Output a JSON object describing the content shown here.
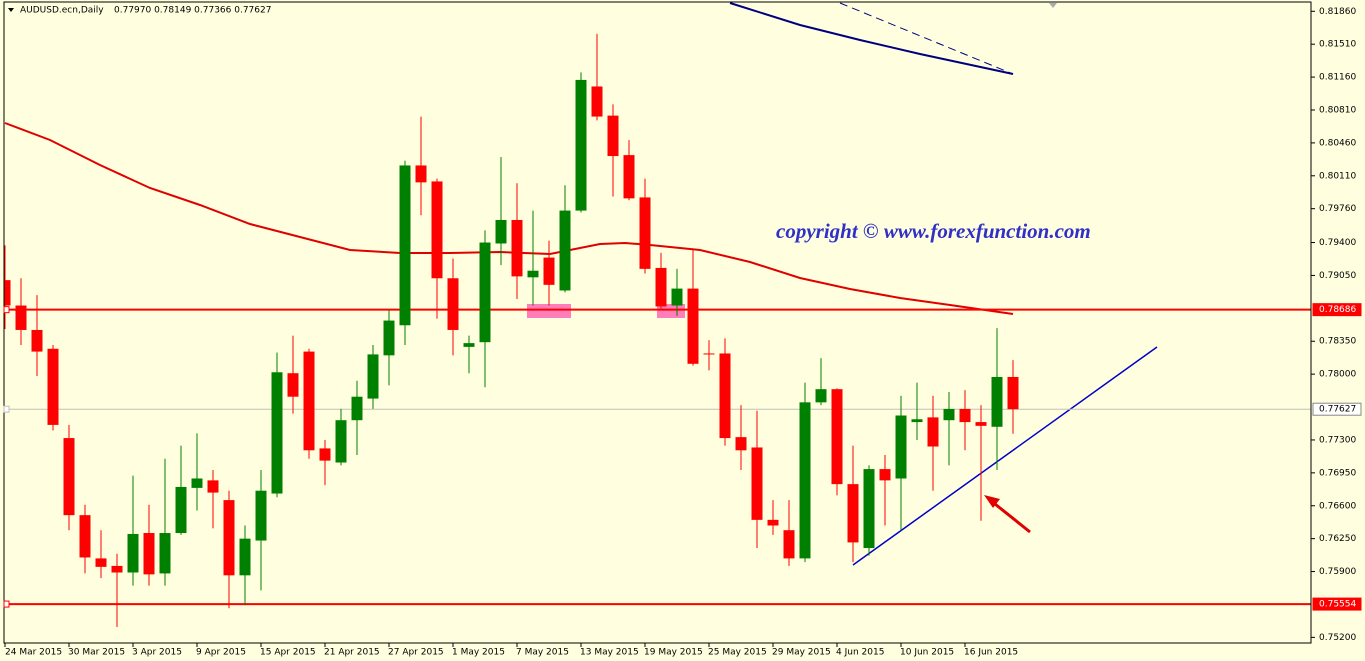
{
  "chart_data": {
    "type": "candlestick",
    "title": "AUDUSD.ecn,Daily",
    "subtitle": "0.77970 0.78149 0.77366 0.77627",
    "annotation": "copyright  ©  www.forexfunction.com",
    "up_color": "#008000",
    "down_color": "#ff0000",
    "categories": [
      "24 Mar 2015",
      null,
      null,
      null,
      "30 Mar 2015",
      null,
      null,
      null,
      "3 Apr 2015",
      null,
      null,
      null,
      "9 Apr 2015",
      null,
      null,
      null,
      "15 Apr 2015",
      null,
      null,
      null,
      "21 Apr 2015",
      null,
      null,
      null,
      "27 Apr 2015",
      null,
      null,
      null,
      "1 May 2015",
      null,
      null,
      null,
      "7 May 2015",
      null,
      null,
      null,
      "13 May 2015",
      null,
      null,
      null,
      "19 May 2015",
      null,
      null,
      null,
      "25 May 2015",
      null,
      null,
      null,
      "29 May 2015",
      null,
      null,
      null,
      "4 Jun 2015",
      null,
      null,
      null,
      "10 Jun 2015",
      null,
      null,
      null,
      "16 Jun 2015",
      null,
      null,
      null
    ],
    "open": [
      0.79,
      0.7873,
      0.7847,
      0.7827,
      0.7732,
      0.765,
      0.7604,
      0.7596,
      0.7589,
      0.7631,
      0.7588,
      0.7631,
      0.7679,
      0.7687,
      0.7666,
      0.7586,
      0.7623,
      0.7673,
      0.7801,
      0.7824,
      0.7721,
      0.7706,
      0.7751,
      0.7774,
      0.782,
      0.7852,
      0.8022,
      0.8005,
      0.7902,
      0.7829,
      0.7834,
      0.7939,
      0.7964,
      0.7903,
      0.7924,
      0.7889,
      0.7974,
      0.8106,
      0.8075,
      0.8033,
      0.7988,
      0.7913,
      0.7873,
      0.7891,
      0.7822,
      0.7822,
      0.7733,
      0.7722,
      0.7645,
      0.7634,
      0.7604,
      0.777,
      0.7784,
      0.7683,
      0.7615,
      0.7699,
      0.7689,
      0.7749,
      0.7754,
      0.7751,
      0.7763,
      0.7749,
      0.7744,
      0.7797
    ],
    "high": [
      0.7937,
      0.7902,
      0.7884,
      0.7831,
      0.7746,
      0.7661,
      0.7634,
      0.7609,
      0.7692,
      0.7661,
      0.771,
      0.7724,
      0.7737,
      0.7698,
      0.7676,
      0.7639,
      0.7698,
      0.7823,
      0.7841,
      0.7827,
      0.773,
      0.7763,
      0.7793,
      0.7831,
      0.7868,
      0.8027,
      0.8074,
      0.8008,
      0.7923,
      0.7841,
      0.7953,
      0.8031,
      0.8003,
      0.7974,
      0.7942,
      0.8001,
      0.8121,
      0.8162,
      0.8087,
      0.8049,
      0.8008,
      0.7929,
      0.7912,
      0.7932,
      0.7836,
      0.7838,
      0.7767,
      0.7761,
      0.7666,
      0.7666,
      0.7791,
      0.7817,
      0.7785,
      0.7724,
      0.7703,
      0.7714,
      0.7777,
      0.7791,
      0.7777,
      0.7781,
      0.7783,
      0.7767,
      0.7849,
      0.78149
    ],
    "low": [
      0.7848,
      0.7831,
      0.7798,
      0.774,
      0.7634,
      0.7588,
      0.7583,
      0.7531,
      0.7575,
      0.7575,
      0.7575,
      0.7629,
      0.7655,
      0.7636,
      0.7551,
      0.7554,
      0.757,
      0.7669,
      0.7758,
      0.771,
      0.7682,
      0.7703,
      0.7714,
      0.7763,
      0.7788,
      0.7831,
      0.7969,
      0.7859,
      0.782,
      0.7801,
      0.7786,
      0.7916,
      0.788,
      0.7873,
      0.7873,
      0.7887,
      0.7972,
      0.807,
      0.7989,
      0.7985,
      0.7907,
      0.7868,
      0.7862,
      0.7809,
      0.7804,
      0.7724,
      0.7698,
      0.7615,
      0.7629,
      0.7596,
      0.76,
      0.7767,
      0.7671,
      0.76,
      0.7607,
      0.7639,
      0.7634,
      0.773,
      0.7676,
      0.7703,
      0.7719,
      0.7644,
      0.7698,
      0.77366
    ],
    "close": [
      0.7873,
      0.7847,
      0.7824,
      0.7746,
      0.765,
      0.7605,
      0.7595,
      0.7589,
      0.763,
      0.7587,
      0.7631,
      0.768,
      0.7689,
      0.7674,
      0.7586,
      0.7625,
      0.7676,
      0.7802,
      0.7776,
      0.7719,
      0.7708,
      0.7751,
      0.7776,
      0.7821,
      0.7857,
      0.8022,
      0.8004,
      0.7902,
      0.7847,
      0.7833,
      0.794,
      0.7964,
      0.7904,
      0.791,
      0.7895,
      0.7974,
      0.8113,
      0.8074,
      0.8032,
      0.7987,
      0.7912,
      0.7872,
      0.7891,
      0.7811,
      0.7821,
      0.7732,
      0.7719,
      0.7645,
      0.7639,
      0.7604,
      0.777,
      0.7784,
      0.7683,
      0.7621,
      0.7699,
      0.7687,
      0.7756,
      0.7752,
      0.7723,
      0.7763,
      0.7749,
      0.7745,
      0.7797,
      0.77627
    ],
    "ylim": [
      0.7514,
      0.8198
    ],
    "yticks": [
      {
        "value": 0.8186,
        "label": "0.81860"
      },
      {
        "value": 0.8151,
        "label": "0.81510"
      },
      {
        "value": 0.8116,
        "label": "0.81160"
      },
      {
        "value": 0.8081,
        "label": "0.80810"
      },
      {
        "value": 0.8046,
        "label": "0.80460"
      },
      {
        "value": 0.8011,
        "label": "0.80110"
      },
      {
        "value": 0.7976,
        "label": "0.79760"
      },
      {
        "value": 0.794,
        "label": "0.79400"
      },
      {
        "value": 0.7905,
        "label": "0.79050"
      },
      {
        "value": 0.7835,
        "label": "0.78350"
      },
      {
        "value": 0.78,
        "label": "0.78000"
      },
      {
        "value": 0.773,
        "label": "0.77300"
      },
      {
        "value": 0.7695,
        "label": "0.76950"
      },
      {
        "value": 0.766,
        "label": "0.76600"
      },
      {
        "value": 0.7625,
        "label": "0.76250"
      },
      {
        "value": 0.759,
        "label": "0.75900"
      },
      {
        "value": 0.752,
        "label": "0.75200"
      }
    ],
    "levels": [
      {
        "value": 0.78686,
        "label": "0.78686",
        "color": "#ff0000"
      },
      {
        "value": 0.75554,
        "label": "0.75554",
        "color": "#ff0000"
      },
      {
        "value": 0.77627,
        "label": "0.77627",
        "color": "#c0c0c0"
      }
    ]
  }
}
